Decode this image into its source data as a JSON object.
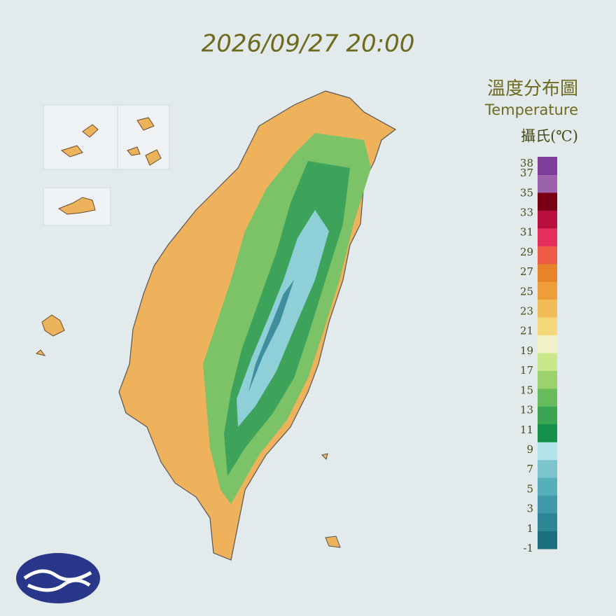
{
  "header": {
    "title": "2026/09/27 20:00"
  },
  "legend": {
    "title": "溫度分布圖",
    "subtitle": "Temperature",
    "unit": "攝氏(℃)",
    "ticks": [
      38,
      37,
      35,
      33,
      31,
      29,
      27,
      25,
      23,
      21,
      19,
      17,
      15,
      13,
      11,
      9,
      7,
      5,
      3,
      1,
      -1
    ],
    "colors": [
      "#1b6f7e",
      "#2a8594",
      "#3e9aa8",
      "#58afbc",
      "#7cc5cf",
      "#b3e4ea",
      "#15904a",
      "#3aa552",
      "#67bb5c",
      "#9bd26c",
      "#c8e88a",
      "#f1f1c6",
      "#f5d77c",
      "#f2bd58",
      "#ed9e3a",
      "#e7842a",
      "#ee5a48",
      "#e62e5c",
      "#b80f3c",
      "#7a0016",
      "#9d62ae",
      "#7f3d9c"
    ]
  }
}
